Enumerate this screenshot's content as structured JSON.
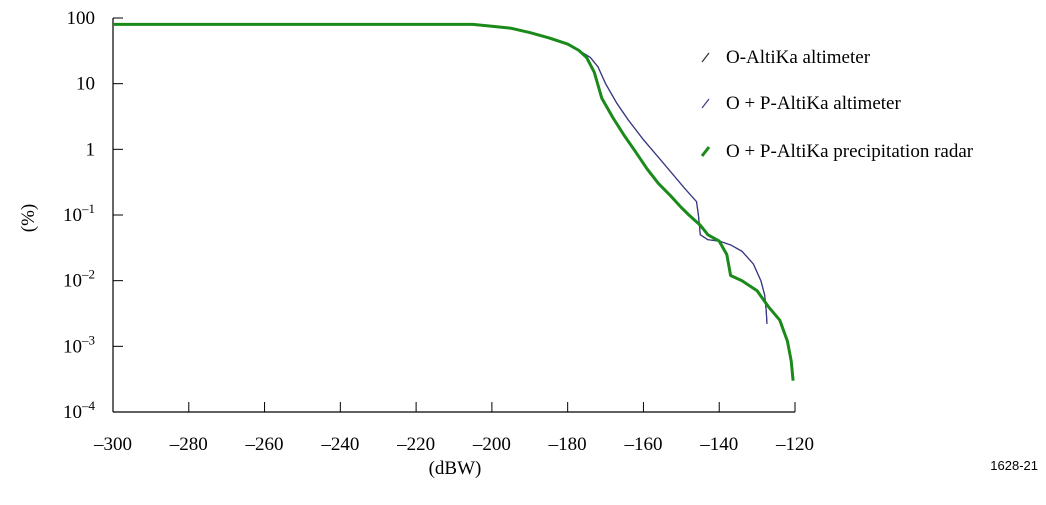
{
  "chart_data": {
    "type": "line",
    "xlabel": "(dBW)",
    "ylabel": "(%)",
    "figure_id": "1628-21",
    "x_scale": "linear",
    "y_scale": "log",
    "xlim": [
      -300,
      -120
    ],
    "ylim": [
      0.0001,
      100
    ],
    "grid": false,
    "legend_position": "top-right",
    "x_ticks": [
      -300,
      -280,
      -260,
      -240,
      -220,
      -200,
      -180,
      -160,
      -140,
      -120
    ],
    "x_tick_labels": [
      "–300",
      "–280",
      "–260",
      "–240",
      "–220",
      "–200",
      "–180",
      "–160",
      "–140",
      "–120"
    ],
    "y_ticks": [
      {
        "value": 100,
        "base": "100",
        "exp": ""
      },
      {
        "value": 10,
        "base": "10",
        "exp": ""
      },
      {
        "value": 1,
        "base": "1",
        "exp": ""
      },
      {
        "value": 0.1,
        "base": "10",
        "exp": "–1"
      },
      {
        "value": 0.01,
        "base": "10",
        "exp": "–2"
      },
      {
        "value": 0.001,
        "base": "10",
        "exp": "–3"
      },
      {
        "value": 0.0001,
        "base": "10",
        "exp": "–4"
      }
    ],
    "series": [
      {
        "name": "O-AltiKa altimeter",
        "color": "#333333",
        "width": 1.2,
        "points": [
          [
            -300,
            80
          ],
          [
            -205,
            80
          ],
          [
            -200,
            75
          ],
          [
            -195,
            70
          ],
          [
            -190,
            60
          ],
          [
            -185,
            50
          ],
          [
            -180,
            40
          ],
          [
            -177,
            32
          ],
          [
            -174,
            25
          ],
          [
            -172,
            18
          ],
          [
            -170,
            10
          ],
          [
            -167,
            5
          ],
          [
            -164,
            2.8
          ],
          [
            -160,
            1.4
          ],
          [
            -156,
            0.75
          ],
          [
            -152,
            0.4
          ],
          [
            -149,
            0.25
          ],
          [
            -146,
            0.16
          ],
          [
            -145.5,
            0.1
          ],
          [
            -145,
            0.05
          ],
          [
            -143,
            0.042
          ],
          [
            -140,
            0.04
          ],
          [
            -137,
            0.035
          ],
          [
            -134,
            0.028
          ],
          [
            -131,
            0.018
          ],
          [
            -129,
            0.01
          ],
          [
            -128,
            0.006
          ],
          [
            -127.6,
            0.0035
          ],
          [
            -127.4,
            0.0022
          ]
        ]
      },
      {
        "name": "O + P-AltiKa altimeter",
        "color": "#3a3a8a",
        "width": 1.2,
        "points": [
          [
            -300,
            80
          ],
          [
            -205,
            80
          ],
          [
            -200,
            75
          ],
          [
            -195,
            70
          ],
          [
            -190,
            60
          ],
          [
            -185,
            50
          ],
          [
            -180,
            40
          ],
          [
            -177,
            32
          ],
          [
            -174,
            25
          ],
          [
            -172,
            18
          ],
          [
            -170,
            10
          ],
          [
            -167,
            5
          ],
          [
            -164,
            2.8
          ],
          [
            -160,
            1.4
          ],
          [
            -156,
            0.75
          ],
          [
            -152,
            0.4
          ],
          [
            -149,
            0.25
          ],
          [
            -146,
            0.16
          ],
          [
            -145.5,
            0.1
          ],
          [
            -145,
            0.05
          ],
          [
            -143,
            0.042
          ],
          [
            -140,
            0.04
          ],
          [
            -137,
            0.035
          ],
          [
            -134,
            0.028
          ],
          [
            -131,
            0.018
          ],
          [
            -129,
            0.01
          ],
          [
            -128,
            0.006
          ],
          [
            -127.6,
            0.0035
          ],
          [
            -127.4,
            0.0022
          ]
        ]
      },
      {
        "name": "O + P-AltiKa precipitation radar",
        "color": "#1a8a1a",
        "width": 3,
        "points": [
          [
            -300,
            80
          ],
          [
            -205,
            80
          ],
          [
            -200,
            75
          ],
          [
            -195,
            70
          ],
          [
            -190,
            60
          ],
          [
            -185,
            50
          ],
          [
            -180,
            40
          ],
          [
            -177,
            32
          ],
          [
            -175,
            25
          ],
          [
            -173,
            15
          ],
          [
            -171,
            6
          ],
          [
            -168,
            3
          ],
          [
            -165,
            1.6
          ],
          [
            -162,
            0.9
          ],
          [
            -159,
            0.5
          ],
          [
            -156,
            0.3
          ],
          [
            -153,
            0.2
          ],
          [
            -150,
            0.13
          ],
          [
            -148,
            0.1
          ],
          [
            -145,
            0.07
          ],
          [
            -143,
            0.05
          ],
          [
            -140,
            0.04
          ],
          [
            -138,
            0.025
          ],
          [
            -137,
            0.012
          ],
          [
            -134,
            0.01
          ],
          [
            -130,
            0.007
          ],
          [
            -127,
            0.004
          ],
          [
            -124,
            0.0025
          ],
          [
            -122,
            0.0012
          ],
          [
            -121,
            0.0006
          ],
          [
            -120.5,
            0.0003
          ]
        ]
      }
    ]
  }
}
